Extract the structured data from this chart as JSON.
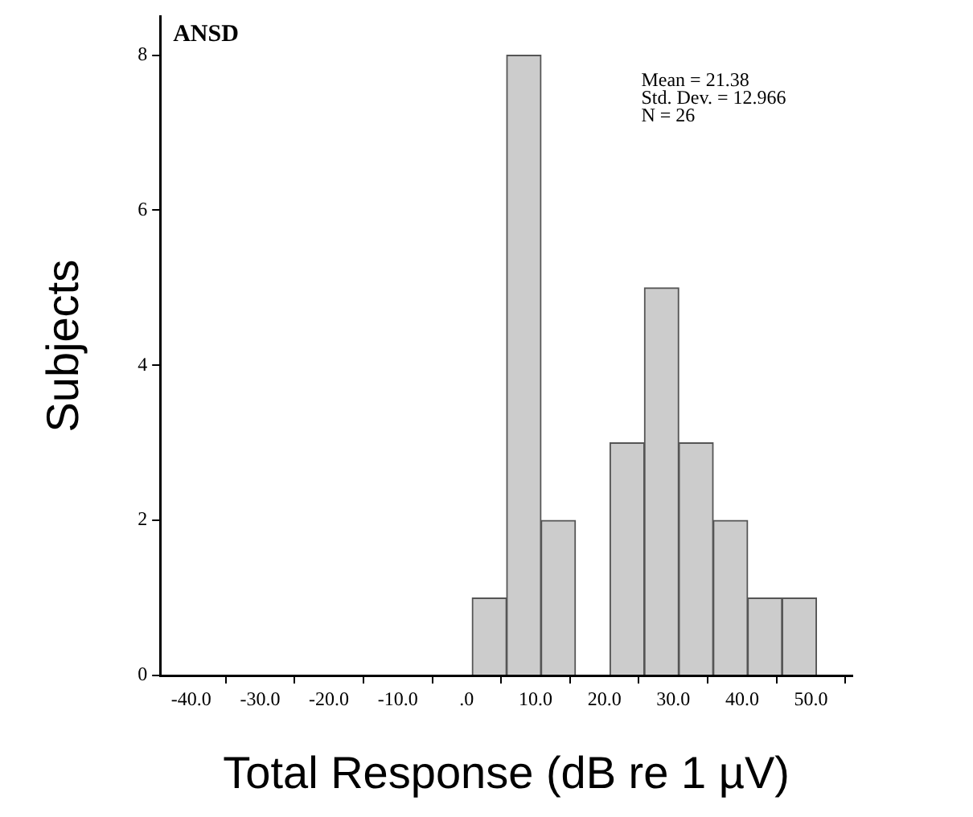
{
  "chart_data": {
    "type": "histogram",
    "title": "ANSD",
    "xlabel": "Total Response (dB re 1 µV)",
    "ylabel": "Subjects",
    "annotations": [
      "Mean = 21.38\nStd. Dev. = 12.966\nN = 26"
    ],
    "bins": [
      0.8,
      5.8,
      10.8,
      15.8,
      20.8,
      25.8,
      30.8,
      35.8,
      40.8,
      45.8,
      50.8
    ],
    "values": [
      1,
      8,
      2,
      0,
      3,
      5,
      3,
      2,
      1,
      1
    ],
    "color": "#cccccc",
    "xlim": [
      -44.5,
      56
    ],
    "xticks": [
      {
        "value": -40,
        "label": "-40.0"
      },
      {
        "value": -30,
        "label": "-30.0"
      },
      {
        "value": -20,
        "label": "-20.0"
      },
      {
        "value": -10,
        "label": "-10.0"
      },
      {
        "value": 0,
        "label": ".0"
      },
      {
        "value": 10,
        "label": "10.0"
      },
      {
        "value": 20,
        "label": "20.0"
      },
      {
        "value": 30,
        "label": "30.0"
      },
      {
        "value": 40,
        "label": "40.0"
      },
      {
        "value": 50,
        "label": "50.0"
      }
    ],
    "ylim": [
      0,
      8.5
    ],
    "yticks": [
      0,
      2,
      4,
      6,
      8
    ],
    "grid": false,
    "legend": false
  }
}
